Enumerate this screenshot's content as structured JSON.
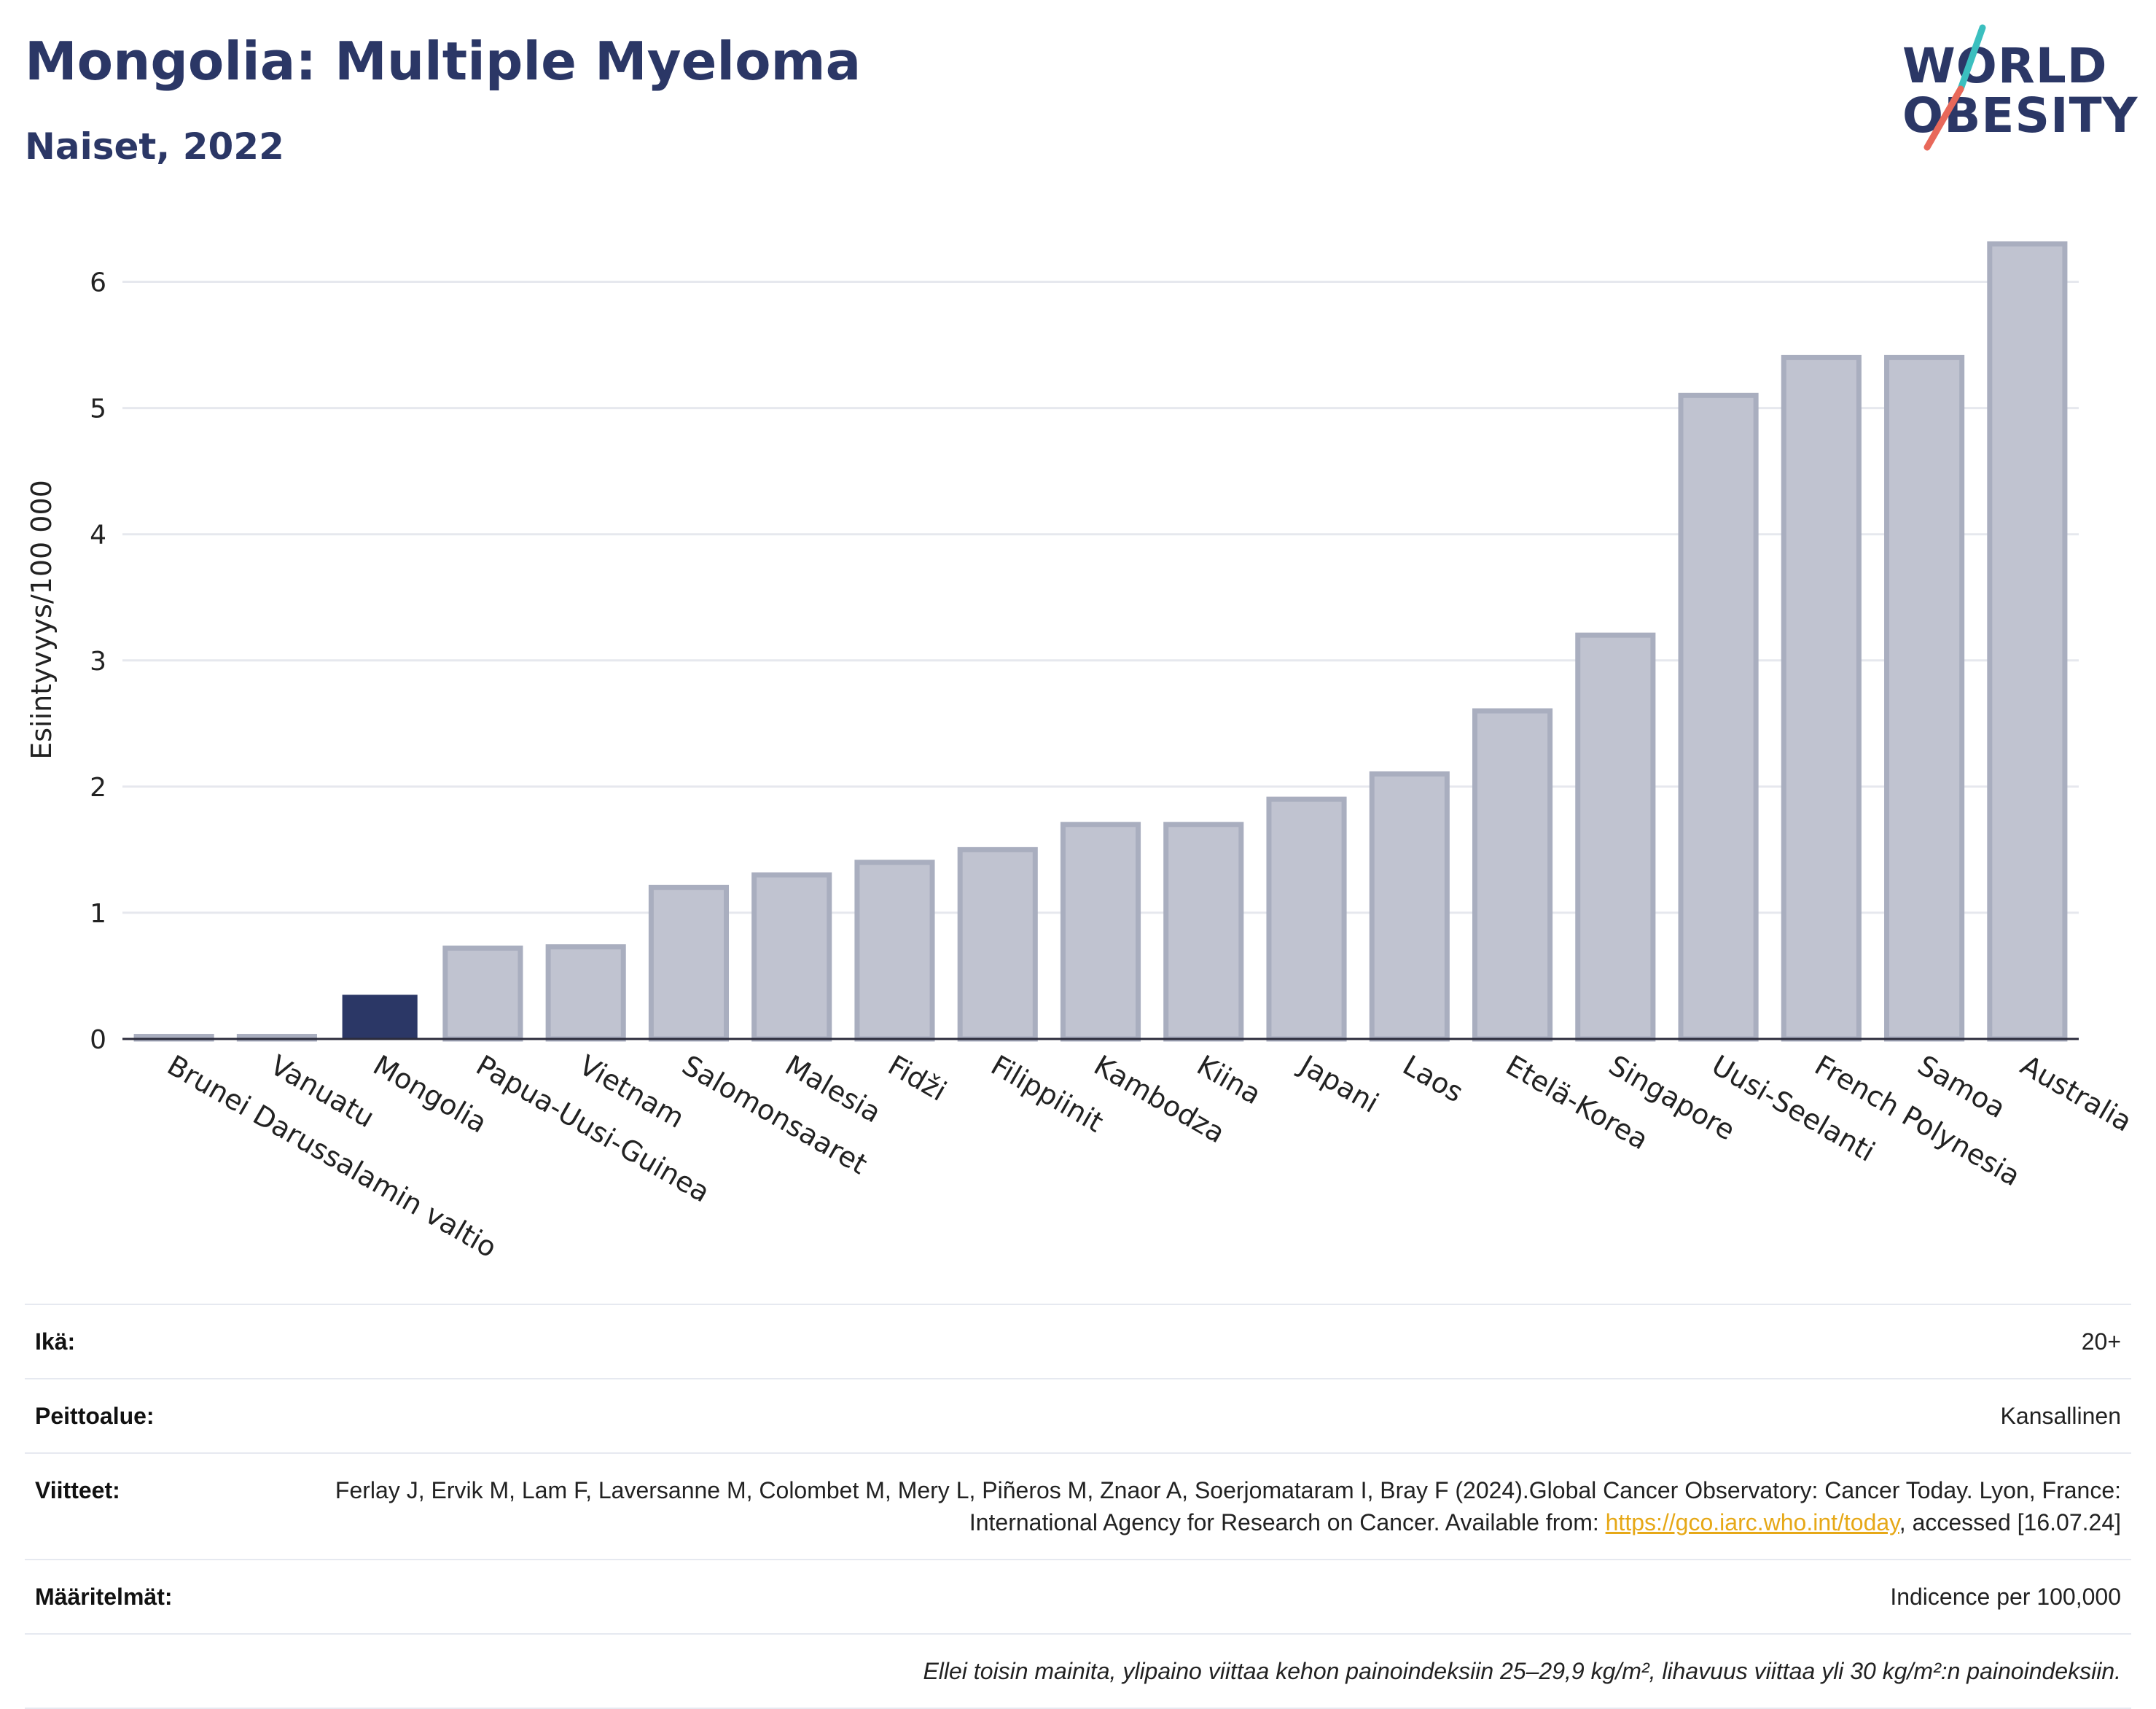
{
  "header": {
    "title": "Mongolia: Multiple Myeloma",
    "subtitle": "Naiset, 2022"
  },
  "logo": {
    "line1": "WORLD",
    "line2": "OBESITY",
    "colors": {
      "text": "#2b3766",
      "slash_top": "#3bbfbf",
      "slash_bottom": "#e8685a"
    }
  },
  "chart_data": {
    "type": "bar",
    "ylabel": "Esiintyvyys/100 000",
    "xlabel": "",
    "ylim": [
      0,
      6.5
    ],
    "yticks": [
      0,
      1,
      2,
      3,
      4,
      5,
      6
    ],
    "grid": true,
    "highlight": "Mongolia",
    "colors": {
      "bar": "#c0c3d0",
      "bar_border": "#a9aebf",
      "highlight": "#2b3766",
      "axis": "#2b2b3b",
      "grid": "#e6e8ee"
    },
    "categories": [
      "Brunei Darussalamin valtio",
      "Vanuatu",
      "Mongolia",
      "Papua-Uusi-Guinea",
      "Vietnam",
      "Salomonsaaret",
      "Malesia",
      "Fidži",
      "Filippiinit",
      "Kambodza",
      "Kiina",
      "Japani",
      "Laos",
      "Etelä-Korea",
      "Singapore",
      "Uusi-Seelanti",
      "French Polynesia",
      "Samoa",
      "Australia"
    ],
    "values": [
      0.02,
      0.02,
      0.35,
      0.72,
      0.73,
      1.2,
      1.3,
      1.4,
      1.5,
      1.7,
      1.7,
      1.9,
      2.1,
      2.6,
      3.2,
      5.1,
      5.4,
      5.4,
      6.3
    ]
  },
  "info": {
    "age_label": "Ikä:",
    "age_value": "20+",
    "coverage_label": "Peittoalue:",
    "coverage_value": "Kansallinen",
    "refs_label": "Viitteet:",
    "refs_text_1": "Ferlay J, Ervik M, Lam F, Laversanne M, Colombet M, Mery L, Piñeros M, Znaor A, Soerjomataram I, Bray F (2024).Global Cancer Observatory: Cancer Today. Lyon, France: International Agency for Research on Cancer. Available from: ",
    "refs_link": "https://gco.iarc.who.int/today",
    "refs_text_2": ", accessed [16.07.24]",
    "defs_label": "Määritelmät:",
    "defs_value": "Indicence per 100,000",
    "note": "Ellei toisin mainita, ylipaino viittaa kehon painoindeksiin 25–29,9 kg/m², lihavuus viittaa yli 30 kg/m²:n painoindeksiin."
  }
}
